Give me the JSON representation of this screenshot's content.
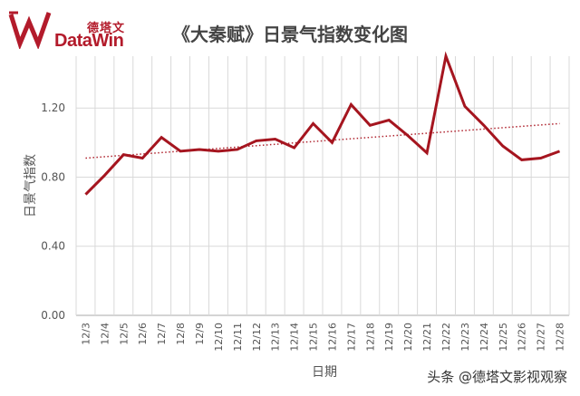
{
  "logo": {
    "cn": "德塔文",
    "en": "DataWin"
  },
  "watermark": "头条 @德塔文影视观察",
  "colors": {
    "line": "#a5151f",
    "trend": "#b02530",
    "grid": "#d9d9d9",
    "axis": "#aaaaaa",
    "brand": "#b31b2b"
  },
  "chart_data": {
    "type": "line",
    "title": "《大秦赋》日景气指数变化图",
    "xlabel": "日期",
    "ylabel": "日景气指数",
    "ylim": [
      0,
      1.5
    ],
    "yticks": [
      0.0,
      0.4,
      0.8,
      1.2
    ],
    "ytick_labels": [
      "0.00",
      "0.40",
      "0.80",
      "1.20"
    ],
    "grid": true,
    "categories": [
      "12/3",
      "12/4",
      "12/5",
      "12/6",
      "12/7",
      "12/8",
      "12/9",
      "12/10",
      "12/11",
      "12/12",
      "12/13",
      "12/14",
      "12/15",
      "12/16",
      "12/17",
      "12/18",
      "12/19",
      "12/20",
      "12/21",
      "12/22",
      "12/23",
      "12/24",
      "12/25",
      "12/26",
      "12/27",
      "12/28"
    ],
    "series": [
      {
        "values": [
          0.7,
          0.81,
          0.93,
          0.91,
          1.03,
          0.95,
          0.96,
          0.95,
          0.96,
          1.01,
          1.02,
          0.97,
          1.11,
          1.0,
          1.22,
          1.1,
          1.13,
          1.04,
          0.94,
          1.5,
          1.21,
          1.1,
          0.98,
          0.9,
          0.91,
          0.95
        ]
      }
    ],
    "trendline": {
      "type": "linear",
      "start": 0.91,
      "end": 1.11
    }
  }
}
